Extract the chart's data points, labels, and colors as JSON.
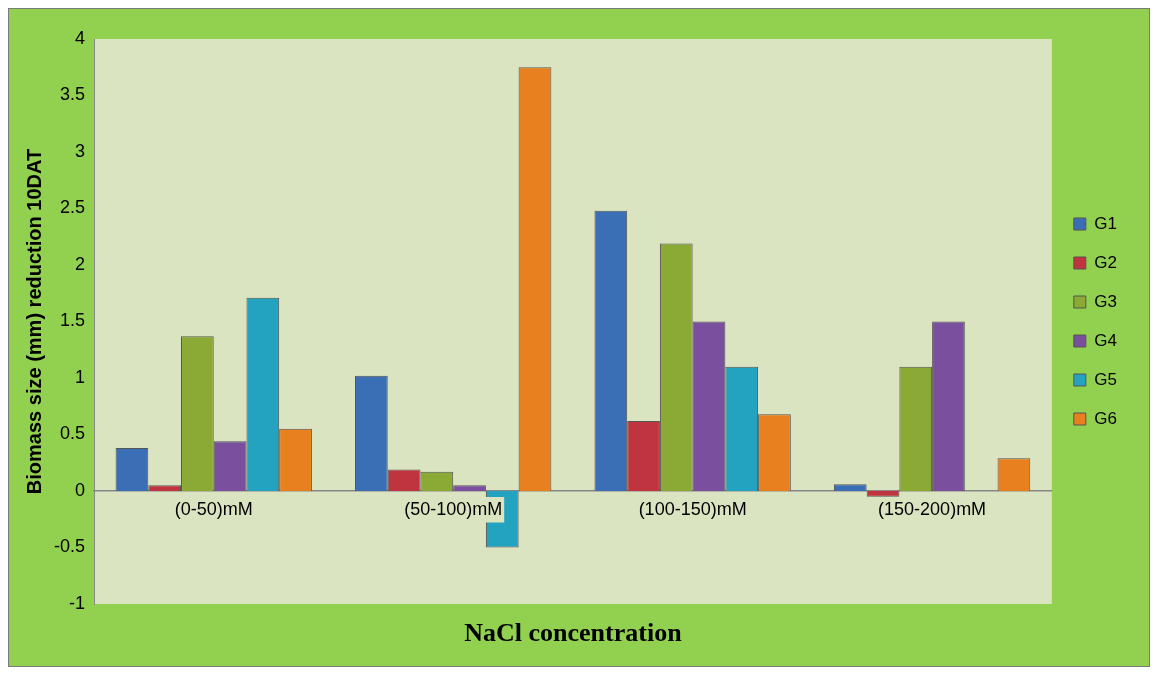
{
  "chart_data": {
    "type": "bar",
    "xlabel": "NaCl concentration",
    "ylabel": "Biomass size (mm) reduction 10DAT",
    "categories": [
      "(0-50)mM",
      "(50-100)mM",
      "(100-150)mM",
      "(150-200)mM"
    ],
    "series": [
      {
        "name": "G1",
        "color": "#3a6fb5",
        "values": [
          0.38,
          1.02,
          2.48,
          0.06
        ]
      },
      {
        "name": "G2",
        "color": "#c0343f",
        "values": [
          0.05,
          0.19,
          0.62,
          -0.05
        ]
      },
      {
        "name": "G3",
        "color": "#8aaa35",
        "values": [
          1.37,
          0.17,
          2.19,
          1.1
        ]
      },
      {
        "name": "G4",
        "color": "#7a4f9e",
        "values": [
          0.44,
          0.05,
          1.5,
          1.5
        ]
      },
      {
        "name": "G5",
        "color": "#23a3bf",
        "values": [
          1.71,
          -0.5,
          1.1,
          0
        ]
      },
      {
        "name": "G6",
        "color": "#e8801f",
        "values": [
          0.55,
          3.75,
          0.68,
          0.29
        ]
      }
    ],
    "ylim": [
      -1,
      4
    ],
    "yticks": [
      -1,
      -0.5,
      0,
      0.5,
      1,
      1.5,
      2,
      2.5,
      3,
      3.5,
      4
    ],
    "grid": false,
    "legend": "right"
  }
}
